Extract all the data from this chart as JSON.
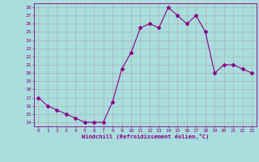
{
  "x": [
    0,
    1,
    2,
    3,
    4,
    5,
    6,
    7,
    8,
    9,
    10,
    11,
    12,
    13,
    14,
    15,
    16,
    17,
    18,
    19,
    20,
    21,
    22,
    23
  ],
  "y": [
    17,
    16,
    15.5,
    15,
    14.5,
    14,
    14,
    14,
    16.5,
    20.5,
    22.5,
    25.5,
    26,
    25.5,
    28,
    27,
    26,
    27,
    25,
    20,
    21,
    21,
    20.5,
    20
  ],
  "line_color": "#880088",
  "marker": "D",
  "marker_size": 2,
  "bg_color": "#aadddd",
  "grid_color": "#aaaaaa",
  "xlabel": "Windchill (Refroidissement éolien,°C)",
  "xlabel_color": "#880088",
  "tick_color": "#880088",
  "ylabel_ticks": [
    14,
    15,
    16,
    17,
    18,
    19,
    20,
    21,
    22,
    23,
    24,
    25,
    26,
    27,
    28
  ],
  "xlim": [
    -0.5,
    23.5
  ],
  "ylim": [
    13.5,
    28.5
  ],
  "xticks": [
    0,
    1,
    2,
    3,
    4,
    5,
    6,
    7,
    8,
    9,
    10,
    11,
    12,
    13,
    14,
    15,
    16,
    17,
    18,
    19,
    20,
    21,
    22,
    23
  ]
}
